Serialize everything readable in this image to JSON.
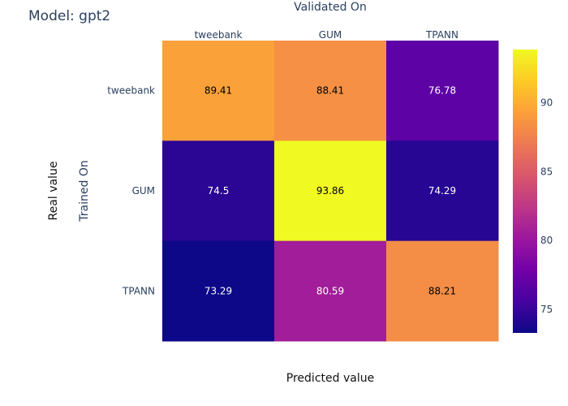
{
  "chart_data": {
    "type": "heatmap",
    "title": "Model: gpt2",
    "x_axis_title": "Validated On",
    "y_axis_title": "Trained On",
    "outer_xlabel": "Predicted value",
    "outer_ylabel": "Real value",
    "x_categories": [
      "tweebank",
      "GUM",
      "TPANN"
    ],
    "y_categories": [
      "tweebank",
      "GUM",
      "TPANN"
    ],
    "values": [
      [
        89.41,
        88.41,
        76.78
      ],
      [
        74.5,
        93.86,
        74.29
      ],
      [
        73.29,
        80.59,
        88.21
      ]
    ],
    "colorscale": "plasma",
    "zmin": 73.29,
    "zmax": 93.86,
    "colorbar_ticks": [
      75,
      80,
      85,
      90
    ]
  }
}
